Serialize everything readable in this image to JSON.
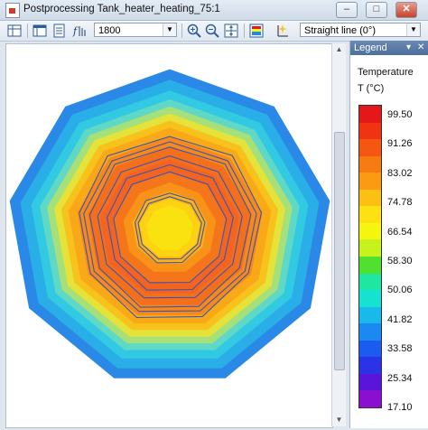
{
  "window": {
    "title": "Postprocessing Tank_heater_heating_75:1",
    "minimize_glyph": "–",
    "maximize_glyph": "□",
    "close_glyph": "✕"
  },
  "toolbar": {
    "time_value": "1800",
    "view_value": "Straight line (0°)",
    "dropdown_glyph": "▼",
    "icons": [
      "grid-view-icon",
      "table-view-icon",
      "document-icon",
      "function-icon",
      "zoom-in-icon",
      "zoom-out-icon",
      "zoom-fit-icon",
      "color-palette-icon",
      "cursor-line-icon"
    ]
  },
  "legend": {
    "header": "Legend",
    "pin_glyph": "▾",
    "close_glyph": "✕",
    "title": "Temperature",
    "unit": "T (°C)",
    "values": [
      "99.50",
      "91.26",
      "83.02",
      "74.78",
      "66.54",
      "58.30",
      "50.06",
      "41.82",
      "33.58",
      "25.34",
      "17.10"
    ],
    "colors": [
      "#e41818",
      "#f03312",
      "#f55712",
      "#f77b13",
      "#fb9b14",
      "#fcbf14",
      "#fde112",
      "#f6f50f",
      "#c8f21c",
      "#4fe030",
      "#1fe6a0",
      "#17e2d2",
      "#1ab9ec",
      "#1b89f1",
      "#1c5bef",
      "#2a34e6",
      "#5b14d9",
      "#8a0fd0"
    ]
  },
  "plot": {
    "contour_colors": [
      "#2a88e6",
      "#2aaee8",
      "#32c9e3",
      "#5fd8c6",
      "#a6e07a",
      "#e5e23a",
      "#f8c21c",
      "#f9a818",
      "#f7891a",
      "#f46f1b",
      "#f26420",
      "#f5751b",
      "#f89318",
      "#fbb115",
      "#fdd213",
      "#f9e20f"
    ]
  },
  "scrollbar": {
    "up_glyph": "▲",
    "down_glyph": "▼"
  }
}
